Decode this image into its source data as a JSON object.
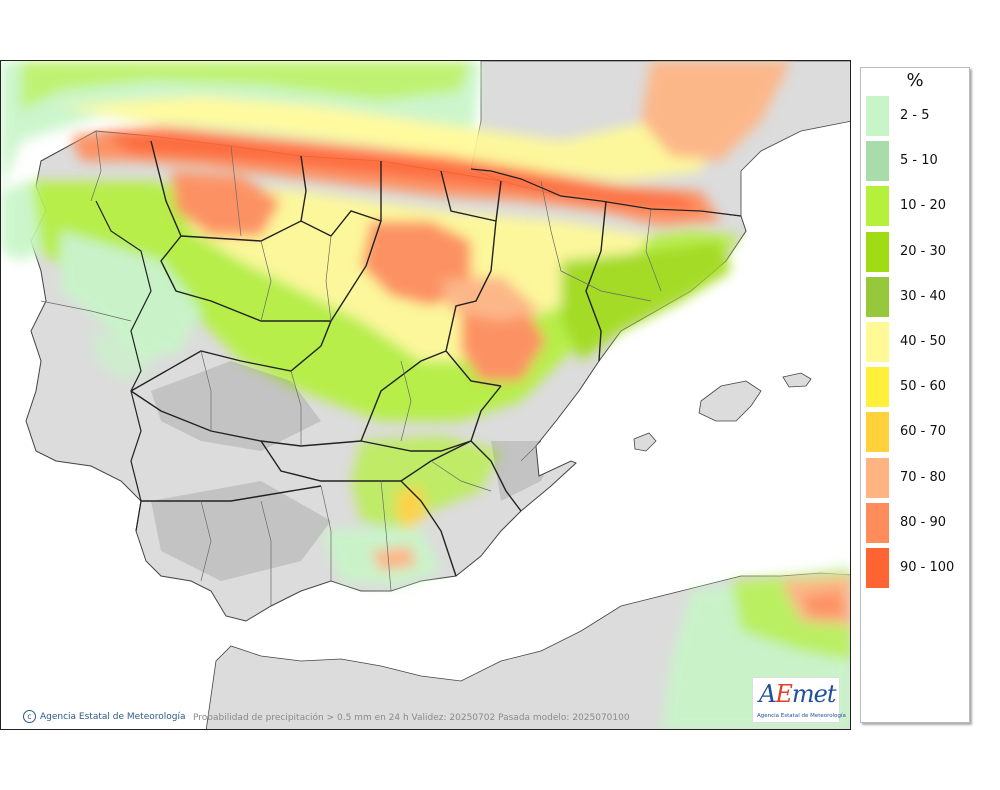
{
  "map": {
    "credit": "Agencia Estatal de Meteorología",
    "caption": "Probabilidad de precipitación > 0.5 mm en 24 h Validez: 20250702 Pasada modelo: 2025070100",
    "logo": {
      "word_a": "A",
      "word_e": "E",
      "word_rest": "met",
      "subtitle": "Agencia Estatal de Meteorología"
    },
    "colors": {
      "land": "#dcdcdc",
      "sea": "#ffffff",
      "border": "#222222",
      "province": "#6a6a6a"
    }
  },
  "legend": {
    "unit": "%",
    "items": [
      {
        "label": "2 - 5",
        "color": "#c8f5c8"
      },
      {
        "label": "5 - 10",
        "color": "#a8dca8"
      },
      {
        "label": "10 - 20",
        "color": "#b4f03c"
      },
      {
        "label": "20 - 30",
        "color": "#a0dc14"
      },
      {
        "label": "30 - 40",
        "color": "#96c83c"
      },
      {
        "label": "40 - 50",
        "color": "#fffa96"
      },
      {
        "label": "50 - 60",
        "color": "#fff03c"
      },
      {
        "label": "60 - 70",
        "color": "#ffd23c"
      },
      {
        "label": "70 - 80",
        "color": "#ffb482"
      },
      {
        "label": "80 - 90",
        "color": "#ff8c5a"
      },
      {
        "label": "90 - 100",
        "color": "#ff6432"
      }
    ]
  }
}
